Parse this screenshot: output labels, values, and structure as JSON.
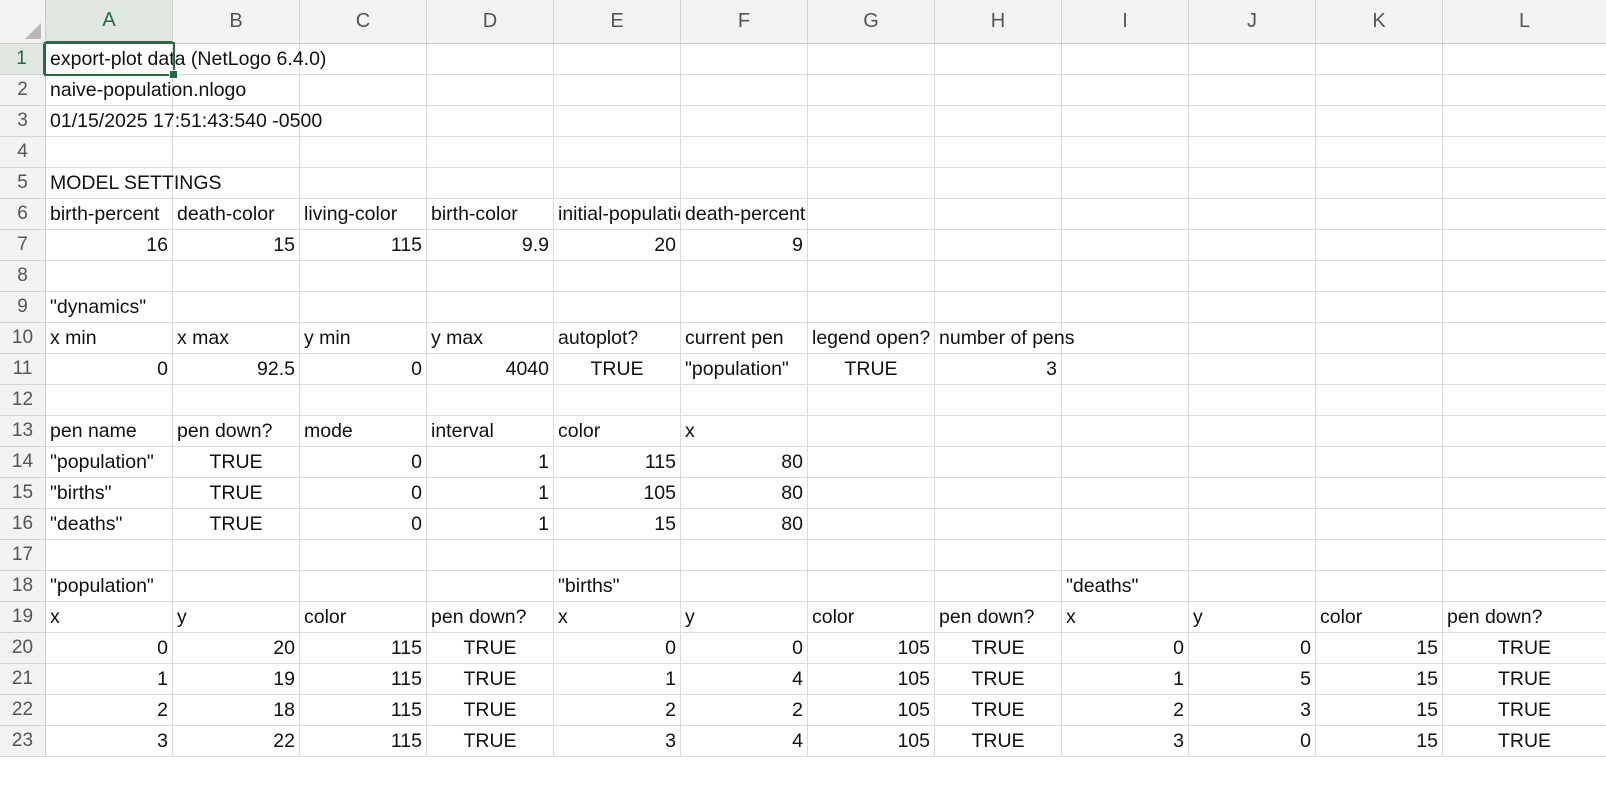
{
  "columns": [
    "A",
    "B",
    "C",
    "D",
    "E",
    "F",
    "G",
    "H",
    "I",
    "J",
    "K",
    "L"
  ],
  "selected_cell": "A1",
  "rows": [
    {
      "n": "1",
      "cells": [
        {
          "c": 0,
          "v": "export-plot data (NetLogo 6.4.0)",
          "t": "txt"
        }
      ]
    },
    {
      "n": "2",
      "cells": [
        {
          "c": 0,
          "v": "naive-population.nlogo",
          "t": "txt"
        }
      ]
    },
    {
      "n": "3",
      "cells": [
        {
          "c": 0,
          "v": "01/15/2025 17:51:43:540 -0500",
          "t": "txt"
        }
      ]
    },
    {
      "n": "4",
      "cells": []
    },
    {
      "n": "5",
      "cells": [
        {
          "c": 0,
          "v": "MODEL SETTINGS",
          "t": "txt"
        }
      ]
    },
    {
      "n": "6",
      "cells": [
        {
          "c": 0,
          "v": "birth-percent",
          "t": "txt"
        },
        {
          "c": 1,
          "v": "death-color",
          "t": "txt"
        },
        {
          "c": 2,
          "v": "living-color",
          "t": "txt"
        },
        {
          "c": 3,
          "v": "birth-color",
          "t": "txt"
        },
        {
          "c": 4,
          "v": "initial-population",
          "t": "txt"
        },
        {
          "c": 5,
          "v": "death-percent",
          "t": "txt"
        }
      ]
    },
    {
      "n": "7",
      "cells": [
        {
          "c": 0,
          "v": "16",
          "t": "num"
        },
        {
          "c": 1,
          "v": "15",
          "t": "num"
        },
        {
          "c": 2,
          "v": "115",
          "t": "num"
        },
        {
          "c": 3,
          "v": "9.9",
          "t": "num"
        },
        {
          "c": 4,
          "v": "20",
          "t": "num"
        },
        {
          "c": 5,
          "v": "9",
          "t": "num"
        }
      ]
    },
    {
      "n": "8",
      "cells": []
    },
    {
      "n": "9",
      "cells": [
        {
          "c": 0,
          "v": "\"dynamics\"",
          "t": "txt"
        }
      ]
    },
    {
      "n": "10",
      "cells": [
        {
          "c": 0,
          "v": "x min",
          "t": "txt"
        },
        {
          "c": 1,
          "v": "x max",
          "t": "txt"
        },
        {
          "c": 2,
          "v": "y min",
          "t": "txt"
        },
        {
          "c": 3,
          "v": "y max",
          "t": "txt"
        },
        {
          "c": 4,
          "v": "autoplot?",
          "t": "txt"
        },
        {
          "c": 5,
          "v": "current pen",
          "t": "txt"
        },
        {
          "c": 6,
          "v": "legend open?",
          "t": "txt"
        },
        {
          "c": 7,
          "v": "number of pens",
          "t": "txt"
        }
      ]
    },
    {
      "n": "11",
      "cells": [
        {
          "c": 0,
          "v": "0",
          "t": "num"
        },
        {
          "c": 1,
          "v": "92.5",
          "t": "num"
        },
        {
          "c": 2,
          "v": "0",
          "t": "num"
        },
        {
          "c": 3,
          "v": "4040",
          "t": "num"
        },
        {
          "c": 4,
          "v": "TRUE",
          "t": "bool"
        },
        {
          "c": 5,
          "v": "\"population\"",
          "t": "txt"
        },
        {
          "c": 6,
          "v": "TRUE",
          "t": "bool"
        },
        {
          "c": 7,
          "v": "3",
          "t": "num"
        }
      ]
    },
    {
      "n": "12",
      "cells": []
    },
    {
      "n": "13",
      "cells": [
        {
          "c": 0,
          "v": "pen name",
          "t": "txt"
        },
        {
          "c": 1,
          "v": "pen down?",
          "t": "txt"
        },
        {
          "c": 2,
          "v": "mode",
          "t": "txt"
        },
        {
          "c": 3,
          "v": "interval",
          "t": "txt"
        },
        {
          "c": 4,
          "v": "color",
          "t": "txt"
        },
        {
          "c": 5,
          "v": "x",
          "t": "txt"
        }
      ]
    },
    {
      "n": "14",
      "cells": [
        {
          "c": 0,
          "v": "\"population\"",
          "t": "txt"
        },
        {
          "c": 1,
          "v": "TRUE",
          "t": "bool"
        },
        {
          "c": 2,
          "v": "0",
          "t": "num"
        },
        {
          "c": 3,
          "v": "1",
          "t": "num"
        },
        {
          "c": 4,
          "v": "115",
          "t": "num"
        },
        {
          "c": 5,
          "v": "80",
          "t": "num"
        }
      ]
    },
    {
      "n": "15",
      "cells": [
        {
          "c": 0,
          "v": "\"births\"",
          "t": "txt"
        },
        {
          "c": 1,
          "v": "TRUE",
          "t": "bool"
        },
        {
          "c": 2,
          "v": "0",
          "t": "num"
        },
        {
          "c": 3,
          "v": "1",
          "t": "num"
        },
        {
          "c": 4,
          "v": "105",
          "t": "num"
        },
        {
          "c": 5,
          "v": "80",
          "t": "num"
        }
      ]
    },
    {
      "n": "16",
      "cells": [
        {
          "c": 0,
          "v": "\"deaths\"",
          "t": "txt"
        },
        {
          "c": 1,
          "v": "TRUE",
          "t": "bool"
        },
        {
          "c": 2,
          "v": "0",
          "t": "num"
        },
        {
          "c": 3,
          "v": "1",
          "t": "num"
        },
        {
          "c": 4,
          "v": "15",
          "t": "num"
        },
        {
          "c": 5,
          "v": "80",
          "t": "num"
        }
      ]
    },
    {
      "n": "17",
      "cells": []
    },
    {
      "n": "18",
      "cells": [
        {
          "c": 0,
          "v": "\"population\"",
          "t": "txt"
        },
        {
          "c": 4,
          "v": "\"births\"",
          "t": "txt"
        },
        {
          "c": 8,
          "v": "\"deaths\"",
          "t": "txt"
        }
      ]
    },
    {
      "n": "19",
      "cells": [
        {
          "c": 0,
          "v": "x",
          "t": "txt"
        },
        {
          "c": 1,
          "v": "y",
          "t": "txt"
        },
        {
          "c": 2,
          "v": "color",
          "t": "txt"
        },
        {
          "c": 3,
          "v": "pen down?",
          "t": "txt"
        },
        {
          "c": 4,
          "v": "x",
          "t": "txt"
        },
        {
          "c": 5,
          "v": "y",
          "t": "txt"
        },
        {
          "c": 6,
          "v": "color",
          "t": "txt"
        },
        {
          "c": 7,
          "v": "pen down?",
          "t": "txt"
        },
        {
          "c": 8,
          "v": "x",
          "t": "txt"
        },
        {
          "c": 9,
          "v": "y",
          "t": "txt"
        },
        {
          "c": 10,
          "v": "color",
          "t": "txt"
        },
        {
          "c": 11,
          "v": "pen down?",
          "t": "txt"
        }
      ]
    },
    {
      "n": "20",
      "cells": [
        {
          "c": 0,
          "v": "0",
          "t": "num"
        },
        {
          "c": 1,
          "v": "20",
          "t": "num"
        },
        {
          "c": 2,
          "v": "115",
          "t": "num"
        },
        {
          "c": 3,
          "v": "TRUE",
          "t": "bool"
        },
        {
          "c": 4,
          "v": "0",
          "t": "num"
        },
        {
          "c": 5,
          "v": "0",
          "t": "num"
        },
        {
          "c": 6,
          "v": "105",
          "t": "num"
        },
        {
          "c": 7,
          "v": "TRUE",
          "t": "bool"
        },
        {
          "c": 8,
          "v": "0",
          "t": "num"
        },
        {
          "c": 9,
          "v": "0",
          "t": "num"
        },
        {
          "c": 10,
          "v": "15",
          "t": "num"
        },
        {
          "c": 11,
          "v": "TRUE",
          "t": "bool"
        }
      ]
    },
    {
      "n": "21",
      "cells": [
        {
          "c": 0,
          "v": "1",
          "t": "num"
        },
        {
          "c": 1,
          "v": "19",
          "t": "num"
        },
        {
          "c": 2,
          "v": "115",
          "t": "num"
        },
        {
          "c": 3,
          "v": "TRUE",
          "t": "bool"
        },
        {
          "c": 4,
          "v": "1",
          "t": "num"
        },
        {
          "c": 5,
          "v": "4",
          "t": "num"
        },
        {
          "c": 6,
          "v": "105",
          "t": "num"
        },
        {
          "c": 7,
          "v": "TRUE",
          "t": "bool"
        },
        {
          "c": 8,
          "v": "1",
          "t": "num"
        },
        {
          "c": 9,
          "v": "5",
          "t": "num"
        },
        {
          "c": 10,
          "v": "15",
          "t": "num"
        },
        {
          "c": 11,
          "v": "TRUE",
          "t": "bool"
        }
      ]
    },
    {
      "n": "22",
      "cells": [
        {
          "c": 0,
          "v": "2",
          "t": "num"
        },
        {
          "c": 1,
          "v": "18",
          "t": "num"
        },
        {
          "c": 2,
          "v": "115",
          "t": "num"
        },
        {
          "c": 3,
          "v": "TRUE",
          "t": "bool"
        },
        {
          "c": 4,
          "v": "2",
          "t": "num"
        },
        {
          "c": 5,
          "v": "2",
          "t": "num"
        },
        {
          "c": 6,
          "v": "105",
          "t": "num"
        },
        {
          "c": 7,
          "v": "TRUE",
          "t": "bool"
        },
        {
          "c": 8,
          "v": "2",
          "t": "num"
        },
        {
          "c": 9,
          "v": "3",
          "t": "num"
        },
        {
          "c": 10,
          "v": "15",
          "t": "num"
        },
        {
          "c": 11,
          "v": "TRUE",
          "t": "bool"
        }
      ]
    },
    {
      "n": "23",
      "cells": [
        {
          "c": 0,
          "v": "3",
          "t": "num"
        },
        {
          "c": 1,
          "v": "22",
          "t": "num"
        },
        {
          "c": 2,
          "v": "115",
          "t": "num"
        },
        {
          "c": 3,
          "v": "TRUE",
          "t": "bool"
        },
        {
          "c": 4,
          "v": "3",
          "t": "num"
        },
        {
          "c": 5,
          "v": "4",
          "t": "num"
        },
        {
          "c": 6,
          "v": "105",
          "t": "num"
        },
        {
          "c": 7,
          "v": "TRUE",
          "t": "bool"
        },
        {
          "c": 8,
          "v": "3",
          "t": "num"
        },
        {
          "c": 9,
          "v": "0",
          "t": "num"
        },
        {
          "c": 10,
          "v": "15",
          "t": "num"
        },
        {
          "c": 11,
          "v": "TRUE",
          "t": "bool"
        }
      ]
    }
  ]
}
